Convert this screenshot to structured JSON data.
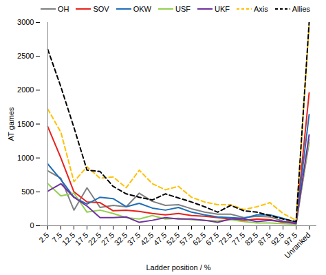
{
  "chart_data": {
    "type": "line",
    "x_label": "Ladder position / %",
    "y_label": "AT games",
    "categories": [
      "2.5",
      "7.5",
      "12.5",
      "17.5",
      "22.5",
      "27.5",
      "32.5",
      "37.5",
      "42.5",
      "47.5",
      "52.5",
      "57.5",
      "62.5",
      "67.5",
      "72.5",
      "77.5",
      "82.5",
      "87.5",
      "92.5",
      "97.5",
      "Unranked"
    ],
    "ylim": [
      0,
      3000
    ],
    "yticks": [
      0,
      500,
      1000,
      1500,
      2000,
      2500,
      3000
    ],
    "legend": "top",
    "series": [
      {
        "name": "OH",
        "color": "#808080",
        "line_style": "solid",
        "values": [
          810,
          700,
          230,
          560,
          270,
          300,
          280,
          480,
          360,
          300,
          310,
          250,
          200,
          170,
          170,
          120,
          140,
          130,
          70,
          40,
          1230
        ]
      },
      {
        "name": "SOV",
        "color": "#e8221c",
        "line_style": "solid",
        "values": [
          1460,
          1000,
          500,
          350,
          340,
          220,
          230,
          210,
          180,
          160,
          180,
          150,
          140,
          120,
          100,
          80,
          100,
          90,
          50,
          50,
          1960
        ]
      },
      {
        "name": "OKW",
        "color": "#1f6fb8",
        "line_style": "solid",
        "values": [
          910,
          680,
          420,
          320,
          420,
          400,
          280,
          330,
          260,
          230,
          270,
          200,
          160,
          130,
          120,
          110,
          160,
          160,
          110,
          50,
          1640
        ]
      },
      {
        "name": "USF",
        "color": "#92d050",
        "line_style": "solid",
        "values": [
          620,
          440,
          480,
          200,
          230,
          180,
          120,
          100,
          150,
          100,
          110,
          90,
          80,
          70,
          90,
          60,
          40,
          40,
          30,
          20,
          1270
        ]
      },
      {
        "name": "UKF",
        "color": "#7030a0",
        "line_style": "solid",
        "values": [
          510,
          620,
          420,
          290,
          120,
          120,
          130,
          50,
          80,
          120,
          100,
          100,
          80,
          50,
          100,
          100,
          60,
          80,
          60,
          30,
          1340
        ]
      },
      {
        "name": "Axis",
        "color": "#ffc000",
        "line_style": "dashed",
        "values": [
          1720,
          1380,
          650,
          870,
          700,
          720,
          560,
          820,
          620,
          530,
          580,
          420,
          350,
          310,
          310,
          240,
          280,
          340,
          180,
          80,
          2950
        ]
      },
      {
        "name": "Allies",
        "color": "#000000",
        "line_style": "dashed",
        "values": [
          2600,
          2050,
          1450,
          820,
          800,
          580,
          470,
          420,
          380,
          470,
          410,
          350,
          280,
          200,
          300,
          220,
          200,
          150,
          100,
          60,
          3000
        ]
      }
    ]
  }
}
